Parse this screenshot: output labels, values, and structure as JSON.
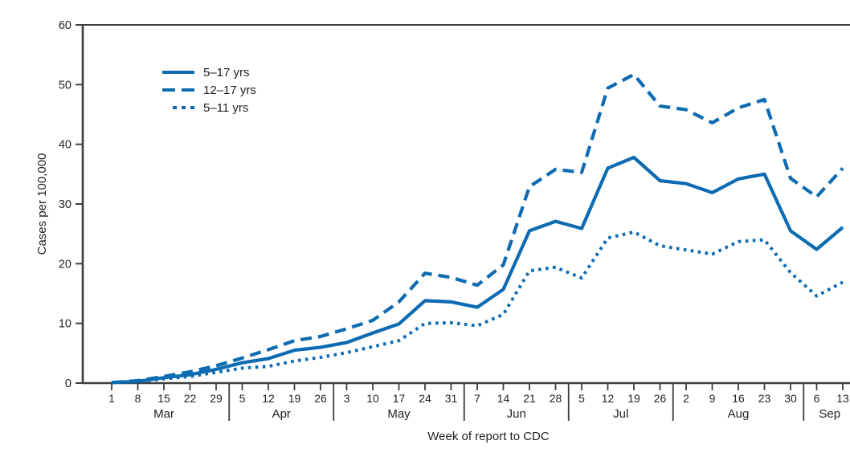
{
  "chart_data": {
    "type": "line",
    "title": "",
    "xlabel": "Week of report to CDC",
    "ylabel": "Cases per 100,000",
    "ylim": [
      0,
      60
    ],
    "yticks": [
      0,
      10,
      20,
      30,
      40,
      50,
      60
    ],
    "grid": false,
    "legend_position": "top-left-inside",
    "x_tick_labels": [
      "1",
      "8",
      "15",
      "22",
      "29",
      "5",
      "12",
      "19",
      "26",
      "3",
      "10",
      "17",
      "24",
      "31",
      "7",
      "14",
      "21",
      "28",
      "5",
      "12",
      "19",
      "26",
      "2",
      "9",
      "16",
      "23",
      "30",
      "6",
      "13"
    ],
    "month_groups": [
      {
        "label": "Mar",
        "start": 0,
        "end": 4
      },
      {
        "label": "Apr",
        "start": 5,
        "end": 8
      },
      {
        "label": "May",
        "start": 9,
        "end": 13
      },
      {
        "label": "Jun",
        "start": 14,
        "end": 17
      },
      {
        "label": "Jul",
        "start": 18,
        "end": 21
      },
      {
        "label": "Aug",
        "start": 22,
        "end": 26
      },
      {
        "label": "Sep",
        "start": 27,
        "end": 28
      }
    ],
    "series": [
      {
        "name": "5–17 yrs",
        "style": "solid",
        "values": [
          0.1,
          0.3,
          0.9,
          1.4,
          2.3,
          3.4,
          4.1,
          5.5,
          6.0,
          6.8,
          8.4,
          9.9,
          13.8,
          13.6,
          12.7,
          15.7,
          25.5,
          27.1,
          25.9,
          36.0,
          37.8,
          33.9,
          33.4,
          31.9,
          34.2,
          35.0,
          25.5,
          22.4,
          26.1
        ]
      },
      {
        "name": "12–17 yrs",
        "style": "dashed",
        "values": [
          0.1,
          0.4,
          1.1,
          1.9,
          2.9,
          4.2,
          5.6,
          7.1,
          7.8,
          9.1,
          10.5,
          13.6,
          18.4,
          17.7,
          16.4,
          19.8,
          32.9,
          35.8,
          35.3,
          49.4,
          51.7,
          46.4,
          45.8,
          43.6,
          46.1,
          47.5,
          34.3,
          31.2,
          36.0
        ]
      },
      {
        "name": "5–11 yrs",
        "style": "dotted",
        "values": [
          0.1,
          0.2,
          0.7,
          1.1,
          1.8,
          2.5,
          2.8,
          3.7,
          4.3,
          5.1,
          6.1,
          7.1,
          10.0,
          10.1,
          9.6,
          11.5,
          18.8,
          19.4,
          17.6,
          24.3,
          25.3,
          23.0,
          22.3,
          21.6,
          23.7,
          24.0,
          18.5,
          14.6,
          16.9
        ]
      }
    ],
    "colors": {
      "line": "#0d6bb2",
      "axis": "#3e3e40",
      "text": "#231f20"
    }
  }
}
